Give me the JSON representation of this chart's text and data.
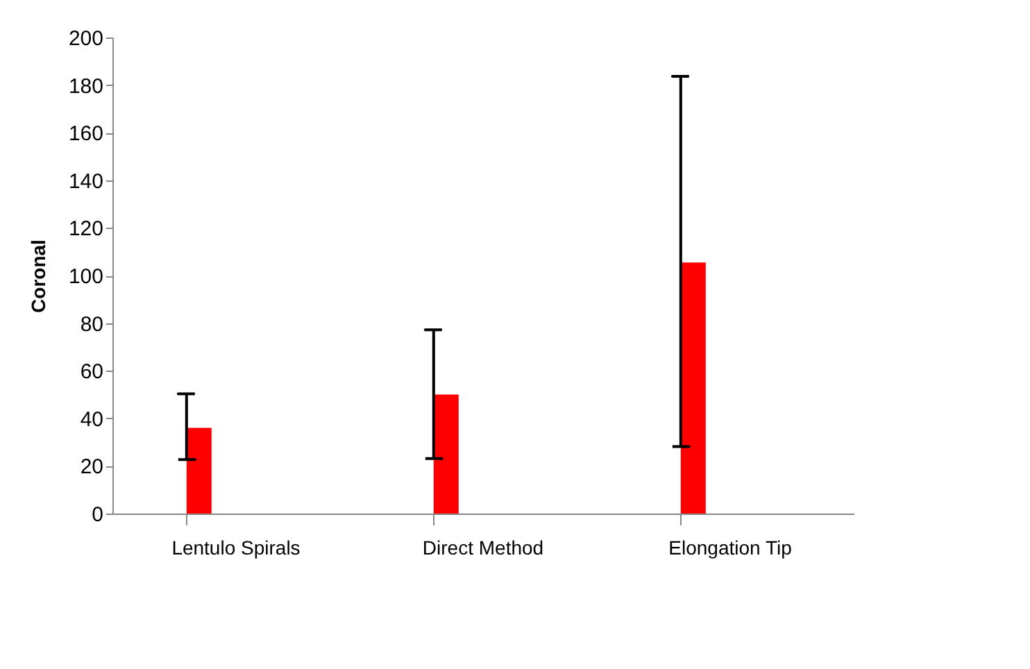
{
  "chart_data": {
    "type": "bar",
    "ylabel": "Coronal",
    "categories": [
      "Lentulo Spirals",
      "Direct Method",
      "Elongation Tip"
    ],
    "values": [
      36,
      50,
      105.5
    ],
    "errors": [
      [
        22.7,
        50.3
      ],
      [
        23.1,
        77.2
      ],
      [
        28.1,
        183.7
      ]
    ],
    "color": "#ff0000",
    "ylim": [
      0,
      200
    ],
    "yticks": [
      0,
      20,
      40,
      60,
      80,
      100,
      120,
      140,
      160,
      180,
      200
    ],
    "grid": false
  }
}
